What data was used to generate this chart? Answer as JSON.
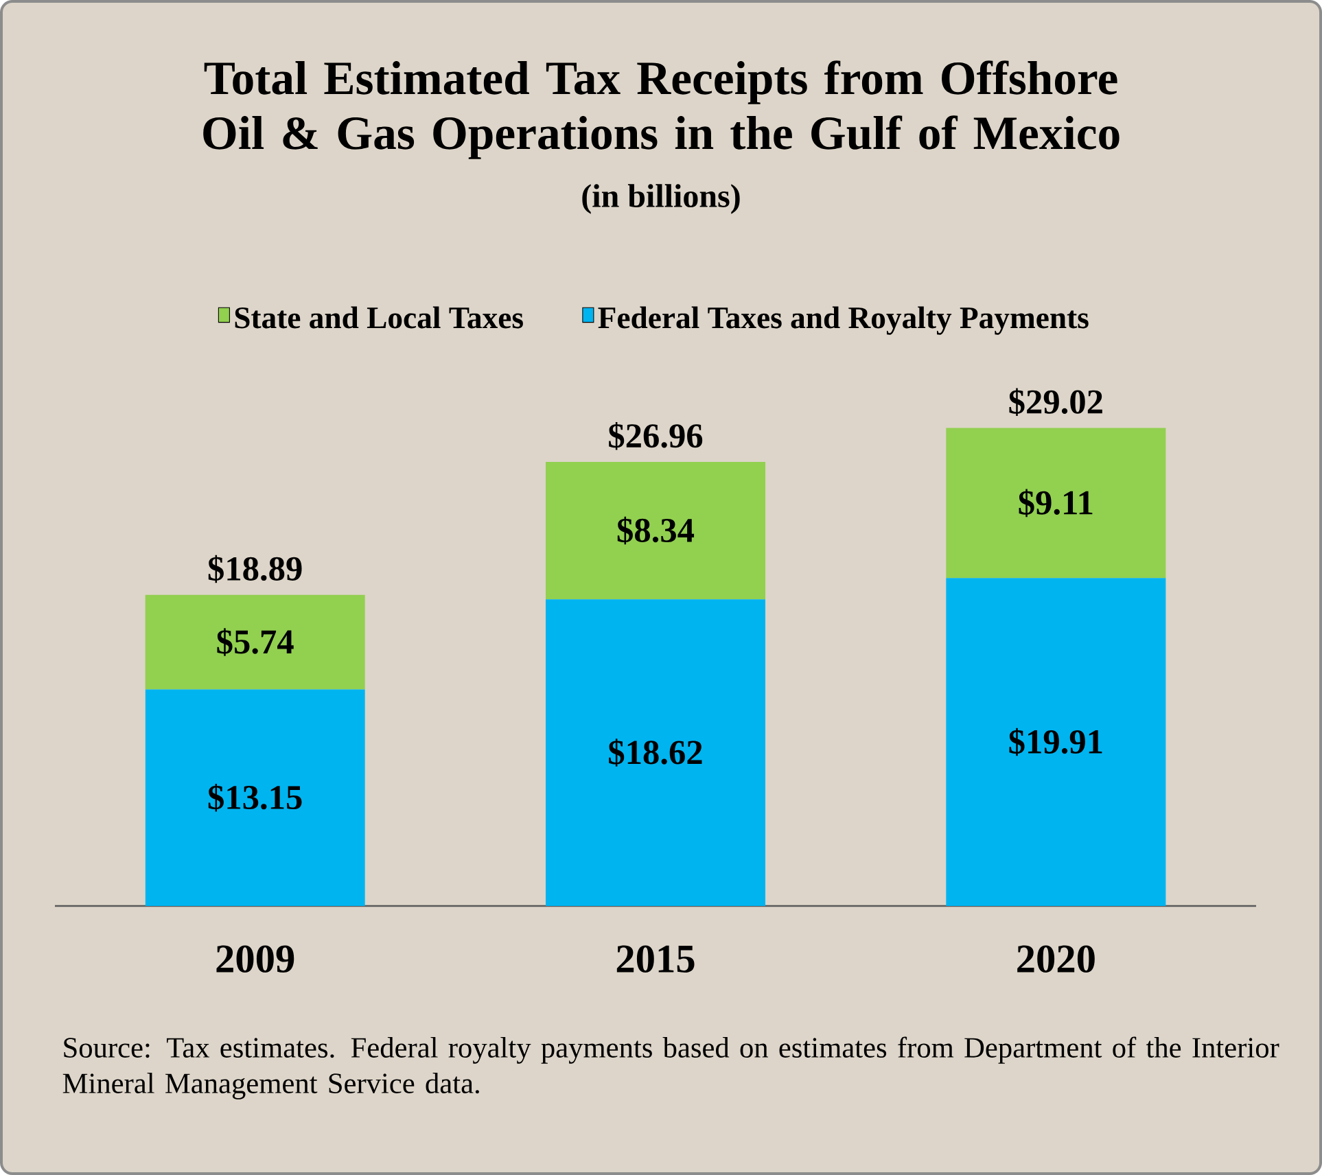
{
  "chart_data": {
    "type": "bar",
    "title": "Total Estimated Tax Receipts from Offshore Oil & Gas Operations in the Gulf of Mexico",
    "subtitle": "(in billions)",
    "categories": [
      "2009",
      "2015",
      "2020"
    ],
    "series": [
      {
        "name": "Federal Taxes and Royalty Payments",
        "color": "#00b4f0",
        "values": [
          13.15,
          18.62,
          19.91
        ],
        "value_labels": [
          "$13.15",
          "$18.62",
          "$19.91"
        ]
      },
      {
        "name": "State and Local Taxes",
        "color": "#92d050",
        "values": [
          5.74,
          8.34,
          9.11
        ],
        "value_labels": [
          "$5.74",
          "$8.34",
          "$9.11"
        ]
      }
    ],
    "stacked": true,
    "totals": [
      "$18.89",
      "$26.96",
      "$29.02"
    ],
    "legend": "top",
    "annotations": [
      "Source: Tax estimates. Federal royalty payments based on estimates from Department of the Interior Mineral Management Service data."
    ]
  }
}
